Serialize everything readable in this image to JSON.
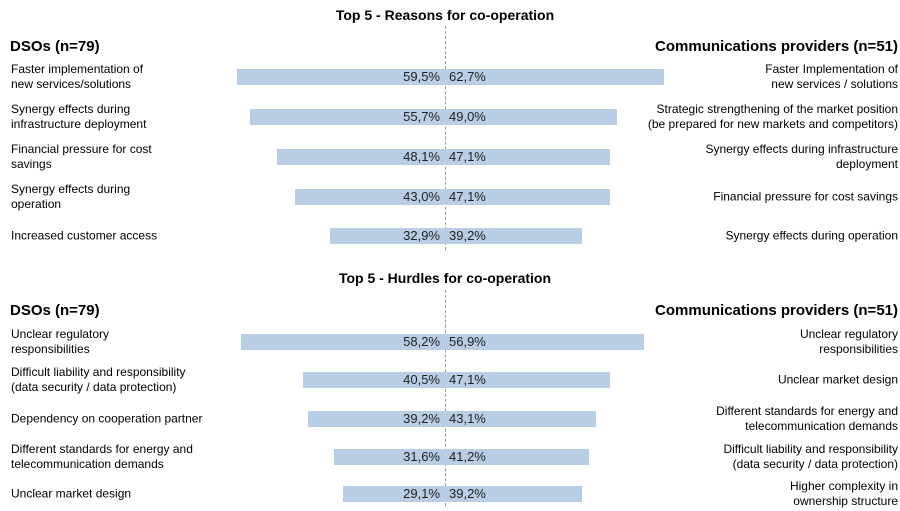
{
  "chart_data": [
    {
      "type": "bar",
      "title": "Top 5 - Reasons for co-operation",
      "series": [
        {
          "name": "DSOs (n=79)",
          "color": "#b9cde5",
          "categories": [
            "Faster implementation of\nnew services/solutions",
            "Synergy effects during\ninfrastructure deployment",
            "Financial pressure for cost\nsavings",
            "Synergy effects during\noperation",
            "Increased customer access"
          ],
          "values": [
            59.5,
            55.7,
            48.1,
            43.0,
            32.9
          ],
          "value_labels": [
            "59,5%",
            "55,7%",
            "48,1%",
            "43,0%",
            "32,9%"
          ]
        },
        {
          "name": "Communications providers (n=51)",
          "color": "#b9cde5",
          "categories": [
            "Faster Implementation of\nnew services / solutions",
            "Strategic strengthening of the market position\n(be prepared for new markets and competitors)",
            "Synergy effects during infrastructure\ndeployment",
            "Financial pressure for cost savings",
            "Synergy effects during operation"
          ],
          "values": [
            62.7,
            49.0,
            47.1,
            47.1,
            39.2
          ],
          "value_labels": [
            "62,7%",
            "49,0%",
            "47,1%",
            "47,1%",
            "39,2%"
          ]
        }
      ]
    },
    {
      "type": "bar",
      "title": "Top 5 - Hurdles for co-operation",
      "series": [
        {
          "name": "DSOs (n=79)",
          "color": "#b9cde5",
          "categories": [
            "Unclear regulatory\nresponsibilities",
            "Difficult liability and responsibility\n(data security / data protection)",
            "Dependency on cooperation partner",
            "Different standards for energy and\ntelecommunication demands",
            "Unclear market design"
          ],
          "values": [
            58.2,
            40.5,
            39.2,
            31.6,
            29.1
          ],
          "value_labels": [
            "58,2%",
            "40,5%",
            "39,2%",
            "31,6%",
            "29,1%"
          ]
        },
        {
          "name": "Communications providers (n=51)",
          "color": "#b9cde5",
          "categories": [
            "Unclear regulatory\nresponsibilities",
            "Unclear market design",
            "Different standards for energy and\ntelecommunication demands",
            "Difficult liability and responsibility\n(data security / data protection)",
            "Higher complexity in\nownership structure"
          ],
          "values": [
            56.9,
            47.1,
            43.1,
            41.2,
            39.2
          ],
          "value_labels": [
            "56,9%",
            "47,1%",
            "43,1%",
            "41,2%",
            "39,2%"
          ]
        }
      ]
    }
  ]
}
